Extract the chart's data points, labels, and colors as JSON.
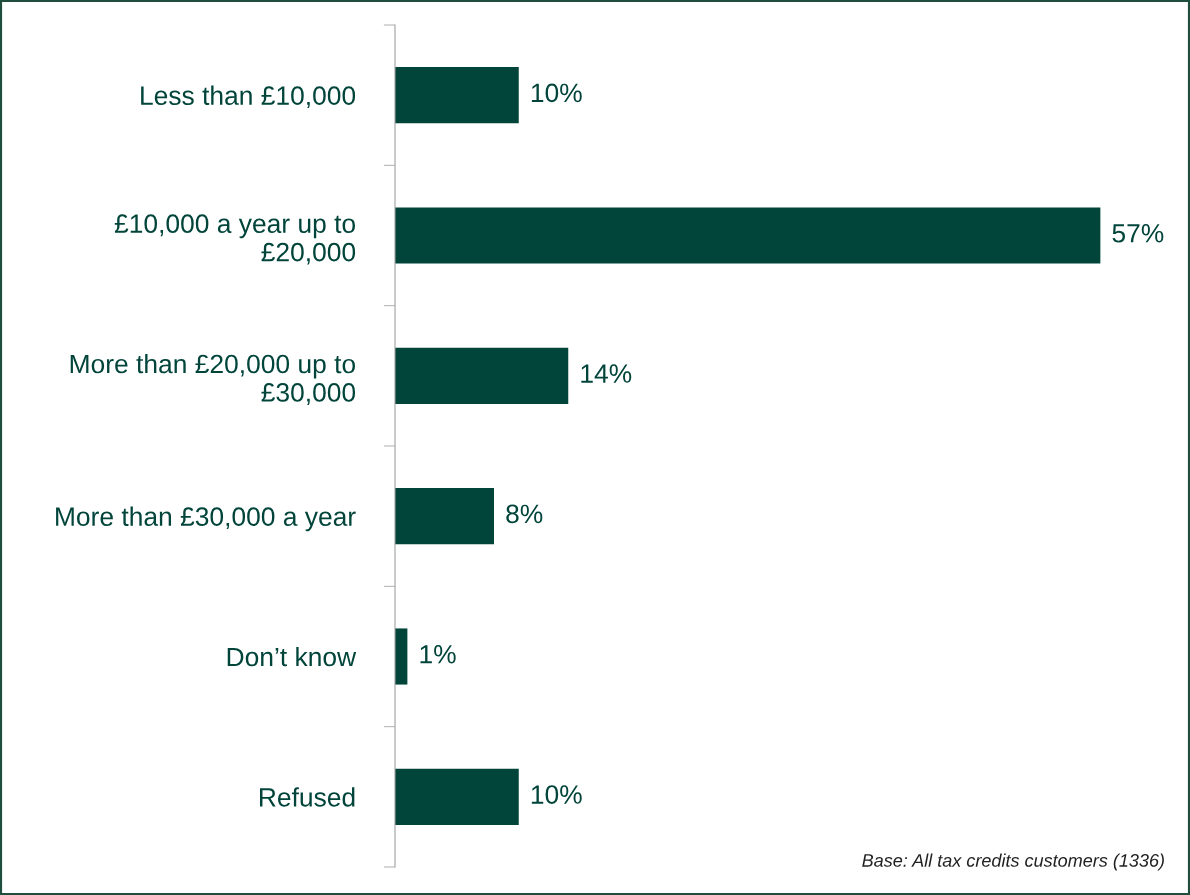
{
  "chart_data": {
    "type": "bar",
    "orientation": "horizontal",
    "categories": [
      "Less than £10,000",
      "£10,000 a year up to\n£20,000",
      "More than £20,000 up to\n£30,000",
      "More than £30,000 a year",
      "Don’t know",
      "Refused"
    ],
    "values": [
      10,
      57,
      14,
      8,
      1,
      10
    ],
    "value_labels": [
      "10%",
      "57%",
      "14%",
      "8%",
      "1%",
      "10%"
    ],
    "color": "#00443a",
    "grid": false,
    "legend": false,
    "annotations": [
      "Base: All tax credits customers (1336)"
    ]
  }
}
